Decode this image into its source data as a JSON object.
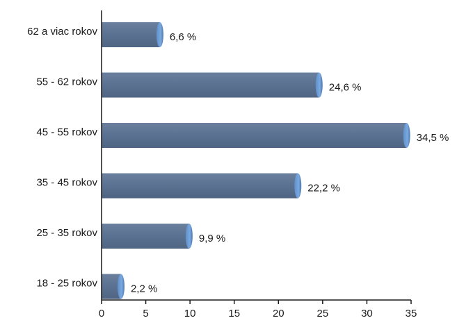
{
  "chart_data": {
    "type": "bar",
    "orientation": "horizontal",
    "categories": [
      "62 a viac rokov",
      "55 - 62 rokov",
      "45 - 55 rokov",
      "35 - 45 rokov",
      "25 - 35 rokov",
      "18 - 25 rokov"
    ],
    "values": [
      6.6,
      24.6,
      34.5,
      22.2,
      9.9,
      2.2
    ],
    "value_labels": [
      "6,6 %",
      "24,6 %",
      "34,5 %",
      "22,2 %",
      "9,9 %",
      "2,2 %"
    ],
    "xlim": [
      0,
      35
    ],
    "xticks": [
      0,
      5,
      10,
      15,
      20,
      25,
      30,
      35
    ],
    "title": "",
    "xlabel": "",
    "ylabel": "",
    "grid": false,
    "colors": {
      "bar": "#5b7191",
      "bar_dark": "#4a5f7d",
      "cap": "#6f9fd8",
      "axis": "#1a1a1a"
    }
  }
}
